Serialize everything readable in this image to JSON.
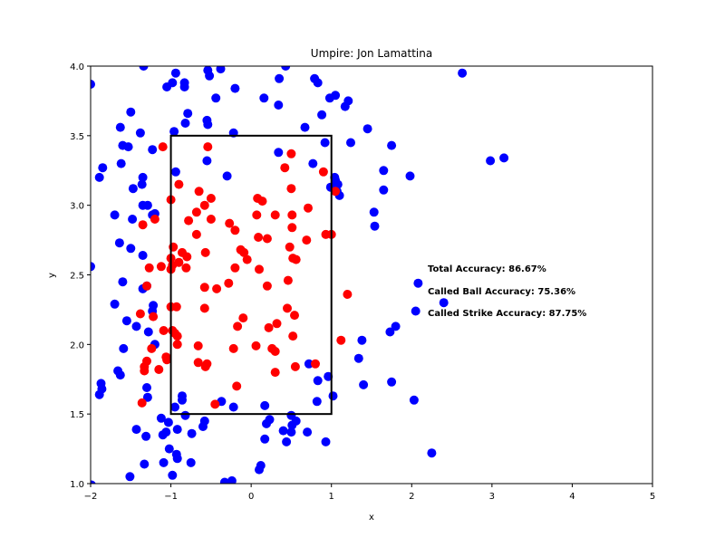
{
  "chart_data": {
    "type": "scatter",
    "title": "Umpire: Jon Lamattina",
    "xlabel": "x",
    "ylabel": "y",
    "xlim": [
      -2,
      5
    ],
    "ylim": [
      1.0,
      4.0
    ],
    "xticks": [
      "−2",
      "−1",
      "0",
      "1",
      "2",
      "3",
      "4",
      "5"
    ],
    "xtick_values": [
      -2,
      -1,
      0,
      1,
      2,
      3,
      4,
      5
    ],
    "yticks": [
      "1.0",
      "1.5",
      "2.0",
      "2.5",
      "3.0",
      "3.5",
      "4.0"
    ],
    "ytick_values": [
      1.0,
      1.5,
      2.0,
      2.5,
      3.0,
      3.5,
      4.0
    ],
    "grid": false,
    "strike_zone": {
      "x": [
        -1,
        1
      ],
      "y": [
        1.5,
        3.5
      ]
    },
    "annotations": [
      "Total Accuracy: 86.67%",
      "Called Ball Accuracy: 75.36%",
      "Called Strike Accuracy: 87.75%"
    ],
    "series": [
      {
        "color": "#0000ff",
        "points": [
          [
            -2.0,
            3.87
          ],
          [
            -1.34,
            4.0
          ],
          [
            -1.05,
            3.85
          ],
          [
            -0.98,
            3.88
          ],
          [
            -0.83,
            3.88
          ],
          [
            -0.83,
            3.85
          ],
          [
            -0.54,
            3.97
          ],
          [
            -0.38,
            3.98
          ],
          [
            -0.94,
            3.95
          ],
          [
            -0.52,
            3.93
          ],
          [
            -0.2,
            3.84
          ],
          [
            0.35,
            3.91
          ],
          [
            0.43,
            4.0
          ],
          [
            0.79,
            3.91
          ],
          [
            0.83,
            3.88
          ],
          [
            2.63,
            3.95
          ],
          [
            -0.44,
            3.77
          ],
          [
            0.16,
            3.77
          ],
          [
            0.98,
            3.77
          ],
          [
            1.05,
            3.79
          ],
          [
            1.21,
            3.75
          ],
          [
            1.17,
            3.71
          ],
          [
            0.34,
            3.72
          ],
          [
            -1.5,
            3.67
          ],
          [
            -0.79,
            3.66
          ],
          [
            -0.55,
            3.61
          ],
          [
            -0.54,
            3.58
          ],
          [
            -0.82,
            3.59
          ],
          [
            -0.96,
            3.53
          ],
          [
            -0.22,
            3.52
          ],
          [
            -1.63,
            3.56
          ],
          [
            -1.38,
            3.52
          ],
          [
            0.67,
            3.56
          ],
          [
            0.88,
            3.65
          ],
          [
            1.45,
            3.55
          ],
          [
            -1.6,
            3.43
          ],
          [
            -1.53,
            3.42
          ],
          [
            -1.23,
            3.4
          ],
          [
            1.24,
            3.45
          ],
          [
            1.75,
            3.43
          ],
          [
            0.34,
            3.38
          ],
          [
            0.92,
            3.45
          ],
          [
            -1.85,
            3.27
          ],
          [
            -1.89,
            3.2
          ],
          [
            -1.62,
            3.3
          ],
          [
            -1.35,
            3.2
          ],
          [
            -0.55,
            3.32
          ],
          [
            0.77,
            3.3
          ],
          [
            1.04,
            3.2
          ],
          [
            1.05,
            3.18
          ],
          [
            1.08,
            3.15
          ],
          [
            0.99,
            3.13
          ],
          [
            1.07,
            3.1
          ],
          [
            1.1,
            3.07
          ],
          [
            1.65,
            3.25
          ],
          [
            1.98,
            3.21
          ],
          [
            2.98,
            3.32
          ],
          [
            3.15,
            3.34
          ],
          [
            -0.94,
            3.24
          ],
          [
            -0.3,
            3.21
          ],
          [
            -1.47,
            3.12
          ],
          [
            -1.36,
            3.15
          ],
          [
            -1.35,
            3.0
          ],
          [
            -1.29,
            3.0
          ],
          [
            -1.2,
            2.94
          ],
          [
            -1.23,
            2.93
          ],
          [
            -1.7,
            2.93
          ],
          [
            -1.48,
            2.9
          ],
          [
            1.65,
            3.11
          ],
          [
            1.53,
            2.95
          ],
          [
            1.54,
            2.85
          ],
          [
            -1.64,
            2.73
          ],
          [
            -1.5,
            2.69
          ],
          [
            -1.35,
            2.64
          ],
          [
            -2.0,
            2.56
          ],
          [
            -1.6,
            2.45
          ],
          [
            -1.3,
            2.42
          ],
          [
            -1.35,
            2.4
          ],
          [
            -1.22,
            2.28
          ],
          [
            -1.23,
            2.24
          ],
          [
            -1.7,
            2.29
          ],
          [
            -1.55,
            2.17
          ],
          [
            -1.43,
            2.13
          ],
          [
            -1.28,
            2.09
          ],
          [
            -1.2,
            2.0
          ],
          [
            -1.59,
            1.97
          ],
          [
            -1.66,
            1.81
          ],
          [
            -1.63,
            1.78
          ],
          [
            -1.87,
            1.72
          ],
          [
            -1.86,
            1.68
          ],
          [
            -1.89,
            1.64
          ],
          [
            -1.3,
            1.69
          ],
          [
            -1.29,
            1.62
          ],
          [
            -0.86,
            1.63
          ],
          [
            -0.86,
            1.6
          ],
          [
            -0.95,
            1.55
          ],
          [
            -0.82,
            1.49
          ],
          [
            -0.37,
            1.59
          ],
          [
            -0.22,
            1.55
          ],
          [
            0.17,
            1.56
          ],
          [
            0.23,
            1.46
          ],
          [
            0.19,
            1.43
          ],
          [
            0.5,
            1.49
          ],
          [
            0.51,
            1.42
          ],
          [
            0.56,
            1.45
          ],
          [
            0.5,
            1.37
          ],
          [
            0.4,
            1.38
          ],
          [
            0.7,
            1.37
          ],
          [
            0.82,
            1.59
          ],
          [
            0.83,
            1.74
          ],
          [
            0.96,
            1.77
          ],
          [
            1.02,
            1.63
          ],
          [
            0.72,
            1.86
          ],
          [
            1.34,
            1.9
          ],
          [
            1.38,
            2.03
          ],
          [
            1.73,
            2.09
          ],
          [
            1.8,
            2.13
          ],
          [
            2.08,
            2.44
          ],
          [
            2.4,
            2.3
          ],
          [
            2.05,
            2.24
          ],
          [
            1.4,
            1.71
          ],
          [
            1.75,
            1.73
          ],
          [
            2.03,
            1.6
          ],
          [
            2.25,
            1.22
          ],
          [
            -1.12,
            1.47
          ],
          [
            -1.03,
            1.44
          ],
          [
            -1.06,
            1.37
          ],
          [
            -0.92,
            1.39
          ],
          [
            -1.1,
            1.35
          ],
          [
            -1.31,
            1.34
          ],
          [
            -1.43,
            1.39
          ],
          [
            -0.58,
            1.45
          ],
          [
            -0.6,
            1.41
          ],
          [
            -0.74,
            1.36
          ],
          [
            0.17,
            1.32
          ],
          [
            0.44,
            1.3
          ],
          [
            0.93,
            1.3
          ],
          [
            -1.02,
            1.25
          ],
          [
            -0.93,
            1.21
          ],
          [
            -0.92,
            1.18
          ],
          [
            -1.33,
            1.14
          ],
          [
            -1.09,
            1.15
          ],
          [
            -0.75,
            1.15
          ],
          [
            -0.98,
            1.06
          ],
          [
            0.12,
            1.13
          ],
          [
            0.1,
            1.1
          ],
          [
            -1.51,
            1.05
          ],
          [
            -0.33,
            1.01
          ],
          [
            -0.24,
            1.02
          ],
          [
            -1.99,
            0.99
          ]
        ]
      },
      {
        "color": "#ff0000",
        "points": [
          [
            -1.1,
            3.42
          ],
          [
            -0.54,
            3.42
          ],
          [
            0.5,
            3.37
          ],
          [
            0.42,
            3.27
          ],
          [
            0.9,
            3.24
          ],
          [
            -0.9,
            3.15
          ],
          [
            -0.65,
            3.1
          ],
          [
            -0.5,
            3.05
          ],
          [
            0.08,
            3.05
          ],
          [
            0.14,
            3.03
          ],
          [
            0.5,
            3.12
          ],
          [
            1.05,
            3.1
          ],
          [
            -1.0,
            3.04
          ],
          [
            -0.58,
            3.0
          ],
          [
            -0.68,
            2.95
          ],
          [
            0.07,
            2.93
          ],
          [
            0.3,
            2.93
          ],
          [
            0.51,
            2.93
          ],
          [
            0.71,
            2.98
          ],
          [
            -1.2,
            2.9
          ],
          [
            -1.35,
            2.86
          ],
          [
            -0.78,
            2.89
          ],
          [
            -0.5,
            2.9
          ],
          [
            -0.27,
            2.87
          ],
          [
            -0.2,
            2.82
          ],
          [
            0.51,
            2.84
          ],
          [
            -0.68,
            2.79
          ],
          [
            0.09,
            2.77
          ],
          [
            0.2,
            2.76
          ],
          [
            0.48,
            2.7
          ],
          [
            0.69,
            2.75
          ],
          [
            0.93,
            2.79
          ],
          [
            1.0,
            2.79
          ],
          [
            -0.97,
            2.7
          ],
          [
            -0.86,
            2.66
          ],
          [
            -0.8,
            2.63
          ],
          [
            -0.57,
            2.66
          ],
          [
            -0.13,
            2.68
          ],
          [
            -0.09,
            2.66
          ],
          [
            -0.05,
            2.61
          ],
          [
            0.52,
            2.62
          ],
          [
            0.56,
            2.61
          ],
          [
            -1.0,
            2.62
          ],
          [
            -0.98,
            2.57
          ],
          [
            -1.0,
            2.54
          ],
          [
            -0.9,
            2.59
          ],
          [
            -0.81,
            2.55
          ],
          [
            -1.27,
            2.55
          ],
          [
            -1.12,
            2.56
          ],
          [
            -0.2,
            2.55
          ],
          [
            0.1,
            2.54
          ],
          [
            -0.58,
            2.41
          ],
          [
            -0.43,
            2.4
          ],
          [
            -0.28,
            2.44
          ],
          [
            0.2,
            2.42
          ],
          [
            0.46,
            2.46
          ],
          [
            -1.3,
            2.42
          ],
          [
            1.2,
            2.36
          ],
          [
            -1.0,
            2.27
          ],
          [
            -0.93,
            2.27
          ],
          [
            -0.58,
            2.26
          ],
          [
            0.45,
            2.26
          ],
          [
            0.54,
            2.21
          ],
          [
            -1.38,
            2.22
          ],
          [
            -1.22,
            2.2
          ],
          [
            -0.1,
            2.19
          ],
          [
            -0.17,
            2.13
          ],
          [
            0.32,
            2.15
          ],
          [
            -1.09,
            2.1
          ],
          [
            -0.98,
            2.1
          ],
          [
            -0.95,
            2.08
          ],
          [
            -0.92,
            2.06
          ],
          [
            0.22,
            2.12
          ],
          [
            0.52,
            2.06
          ],
          [
            -0.92,
            2.0
          ],
          [
            -0.66,
            1.99
          ],
          [
            -0.22,
            1.97
          ],
          [
            0.06,
            1.99
          ],
          [
            0.26,
            1.97
          ],
          [
            0.3,
            1.95
          ],
          [
            1.12,
            2.03
          ],
          [
            -1.24,
            1.97
          ],
          [
            -1.06,
            1.91
          ],
          [
            -1.05,
            1.89
          ],
          [
            -1.3,
            1.88
          ],
          [
            -1.33,
            1.84
          ],
          [
            -1.33,
            1.81
          ],
          [
            -1.15,
            1.82
          ],
          [
            -0.66,
            1.87
          ],
          [
            -0.55,
            1.86
          ],
          [
            -0.57,
            1.84
          ],
          [
            0.3,
            1.8
          ],
          [
            0.55,
            1.84
          ],
          [
            0.8,
            1.86
          ],
          [
            -1.36,
            1.58
          ],
          [
            -0.45,
            1.57
          ],
          [
            -0.18,
            1.7
          ]
        ]
      }
    ]
  }
}
